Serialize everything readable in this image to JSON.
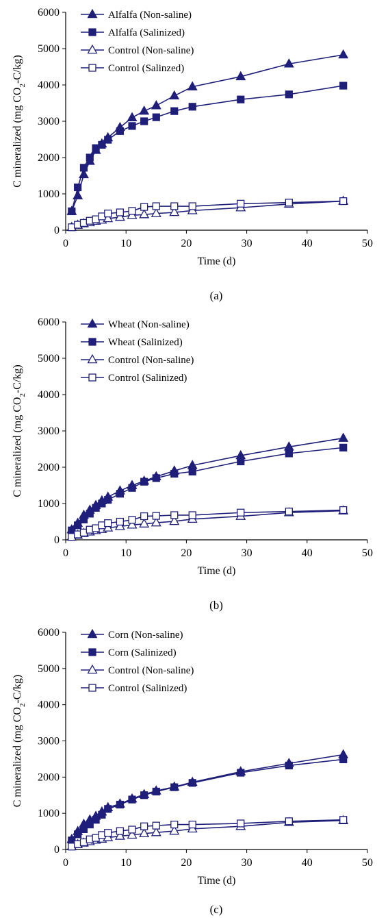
{
  "colors": {
    "series": "#1f1f7a",
    "axis": "#000000"
  },
  "chart_data": [
    {
      "type": "line",
      "panel_label": "(a)",
      "xlabel": "Time (d)",
      "ylabel_main": "C mineralized (mg CO",
      "ylabel_sub": "2",
      "ylabel_tail": "-C/kg)",
      "xlim": [
        0,
        50
      ],
      "ylim": [
        0,
        6000
      ],
      "xticks": [
        "0",
        "10",
        "20",
        "30",
        "40",
        "50"
      ],
      "yticks": [
        "0",
        "1000",
        "2000",
        "3000",
        "4000",
        "5000",
        "6000"
      ],
      "x": [
        1,
        2,
        3,
        4,
        5,
        6,
        7,
        9,
        11,
        13,
        15,
        18,
        21,
        29,
        37,
        46
      ],
      "legend_position": "top-left",
      "series": [
        {
          "name": "Alfalfa (Non-saline)",
          "marker": "triangle-filled",
          "values": [
            520,
            950,
            1530,
            1900,
            2200,
            2380,
            2550,
            2830,
            3100,
            3280,
            3430,
            3700,
            3950,
            4230,
            4580,
            4830
          ]
        },
        {
          "name": "Alfalfa (Salinized)",
          "marker": "square-filled",
          "values": [
            520,
            1180,
            1720,
            2000,
            2260,
            2350,
            2490,
            2730,
            2870,
            3000,
            3110,
            3280,
            3400,
            3600,
            3740,
            3980
          ]
        },
        {
          "name": "Control (Non-saline)",
          "marker": "triangle-open",
          "values": [
            80,
            140,
            180,
            210,
            250,
            280,
            320,
            360,
            410,
            430,
            460,
            490,
            540,
            620,
            720,
            800
          ]
        },
        {
          "name": "Control (Salinzed)",
          "marker": "square-open",
          "values": [
            80,
            150,
            200,
            260,
            300,
            380,
            460,
            490,
            530,
            640,
            660,
            660,
            660,
            730,
            760,
            800
          ]
        }
      ]
    },
    {
      "type": "line",
      "panel_label": "(b)",
      "xlabel": "Time (d)",
      "ylabel_main": "C mineralized (mg CO",
      "ylabel_sub": "2",
      "ylabel_tail": "-C/kg)",
      "xlim": [
        0,
        50
      ],
      "ylim": [
        0,
        6000
      ],
      "xticks": [
        "0",
        "10",
        "20",
        "30",
        "40",
        "50"
      ],
      "yticks": [
        "0",
        "1000",
        "2000",
        "3000",
        "4000",
        "5000",
        "6000"
      ],
      "x": [
        1,
        2,
        3,
        4,
        5,
        6,
        7,
        9,
        11,
        13,
        15,
        18,
        21,
        29,
        37,
        46
      ],
      "legend_position": "top-left",
      "series": [
        {
          "name": "Wheat (Non-saline)",
          "marker": "triangle-filled",
          "values": [
            280,
            460,
            680,
            820,
            950,
            1080,
            1180,
            1350,
            1500,
            1620,
            1740,
            1900,
            2050,
            2320,
            2560,
            2800
          ]
        },
        {
          "name": "Wheat (Salinized)",
          "marker": "square-filled",
          "values": [
            260,
            400,
            560,
            720,
            880,
            1000,
            1100,
            1270,
            1430,
            1600,
            1700,
            1820,
            1880,
            2160,
            2380,
            2540
          ]
        },
        {
          "name": "Control (Non-saline)",
          "marker": "triangle-open",
          "values": [
            80,
            130,
            180,
            220,
            260,
            290,
            330,
            370,
            410,
            440,
            470,
            510,
            570,
            650,
            750,
            800
          ]
        },
        {
          "name": "Control (Salinized)",
          "marker": "square-open",
          "values": [
            80,
            150,
            200,
            280,
            320,
            400,
            460,
            500,
            550,
            650,
            660,
            680,
            680,
            750,
            780,
            820
          ]
        }
      ]
    },
    {
      "type": "line",
      "panel_label": "(c)",
      "xlabel": "Time (d)",
      "ylabel_main": "C mineralized (mg CO",
      "ylabel_sub": "2",
      "ylabel_tail": "-C/kg)",
      "xlim": [
        0,
        50
      ],
      "ylim": [
        0,
        6000
      ],
      "xticks": [
        "0",
        "10",
        "20",
        "30",
        "40",
        "50"
      ],
      "yticks": [
        "0",
        "1000",
        "2000",
        "3000",
        "4000",
        "5000",
        "6000"
      ],
      "x": [
        1,
        2,
        3,
        4,
        5,
        6,
        7,
        9,
        11,
        13,
        15,
        18,
        21,
        29,
        37,
        46
      ],
      "legend_position": "top-left",
      "series": [
        {
          "name": "Corn (Non-saline)",
          "marker": "triangle-filled",
          "values": [
            280,
            500,
            700,
            820,
            920,
            1040,
            1160,
            1260,
            1400,
            1520,
            1620,
            1730,
            1860,
            2150,
            2380,
            2620
          ]
        },
        {
          "name": "Corn (Salinized)",
          "marker": "square-filled",
          "values": [
            250,
            420,
            560,
            690,
            820,
            960,
            1120,
            1240,
            1380,
            1500,
            1600,
            1720,
            1840,
            2120,
            2320,
            2490
          ]
        },
        {
          "name": "Control (Non-saline)",
          "marker": "triangle-open",
          "values": [
            80,
            140,
            180,
            220,
            260,
            290,
            330,
            370,
            400,
            440,
            470,
            510,
            570,
            640,
            750,
            800
          ]
        },
        {
          "name": "Control (Salinized)",
          "marker": "square-open",
          "values": [
            80,
            150,
            200,
            280,
            320,
            400,
            460,
            510,
            550,
            640,
            660,
            690,
            690,
            720,
            780,
            820
          ]
        }
      ]
    }
  ]
}
